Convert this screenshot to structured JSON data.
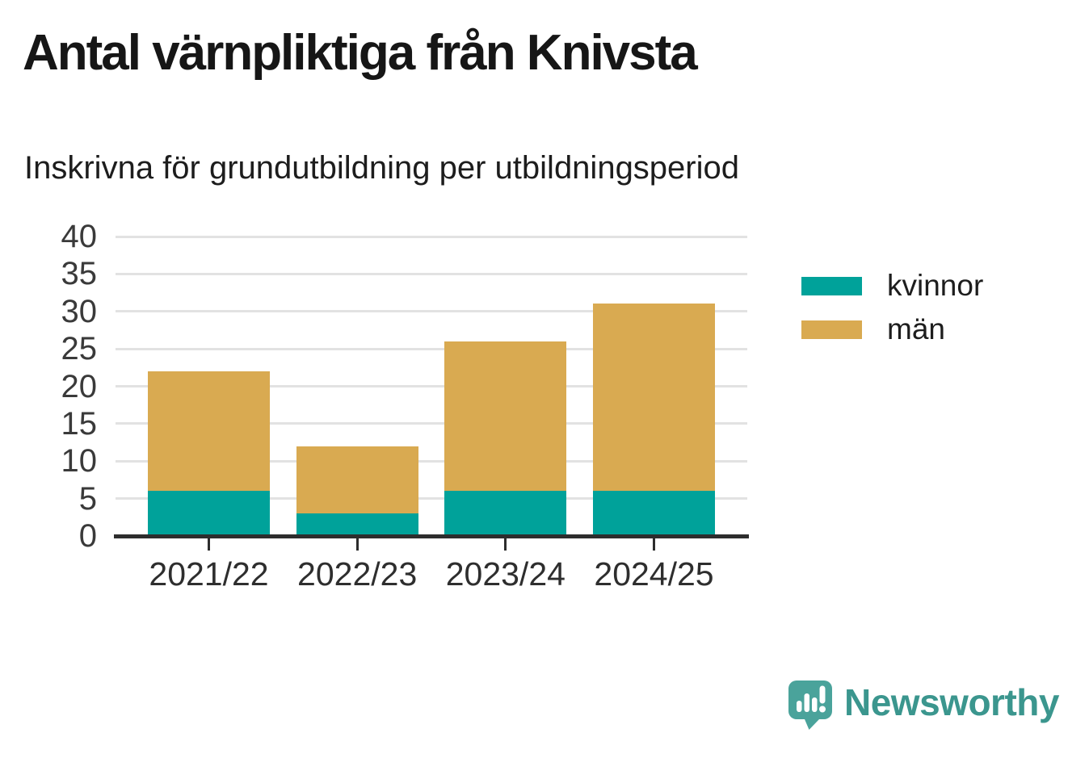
{
  "title": "Antal värnpliktiga från Knivsta",
  "subtitle": "Inskrivna för grundutbildning per utbildningsperiod",
  "chart_data": {
    "type": "bar",
    "stacked": true,
    "title": "Antal värnpliktiga från Knivsta",
    "subtitle": "Inskrivna för grundutbildning per utbildningsperiod",
    "categories": [
      "2021/22",
      "2022/23",
      "2023/24",
      "2024/25"
    ],
    "series": [
      {
        "name": "kvinnor",
        "color": "#00a29a",
        "values": [
          6,
          3,
          6,
          6
        ]
      },
      {
        "name": "män",
        "color": "#d9aa51",
        "values": [
          16,
          9,
          20,
          25
        ]
      }
    ],
    "stack_totals": [
      22,
      12,
      26,
      31
    ],
    "xlabel": "",
    "ylabel": "",
    "ylim": [
      0,
      40
    ],
    "yticks": [
      0,
      5,
      10,
      15,
      20,
      25,
      30,
      35,
      40
    ],
    "grid": true,
    "legend_position": "right"
  },
  "branding": {
    "logo_text": "Newsworthy",
    "icon_color": "#4aa39b",
    "text_color": "#3b968e"
  },
  "colors": {
    "background": "#ffffff",
    "grid": "#e2e2e2",
    "axis": "#2d2d2d",
    "tick_label": "#3a3a3a",
    "title_text": "#161616",
    "kvinnor": "#00a29a",
    "man": "#d9aa51"
  }
}
